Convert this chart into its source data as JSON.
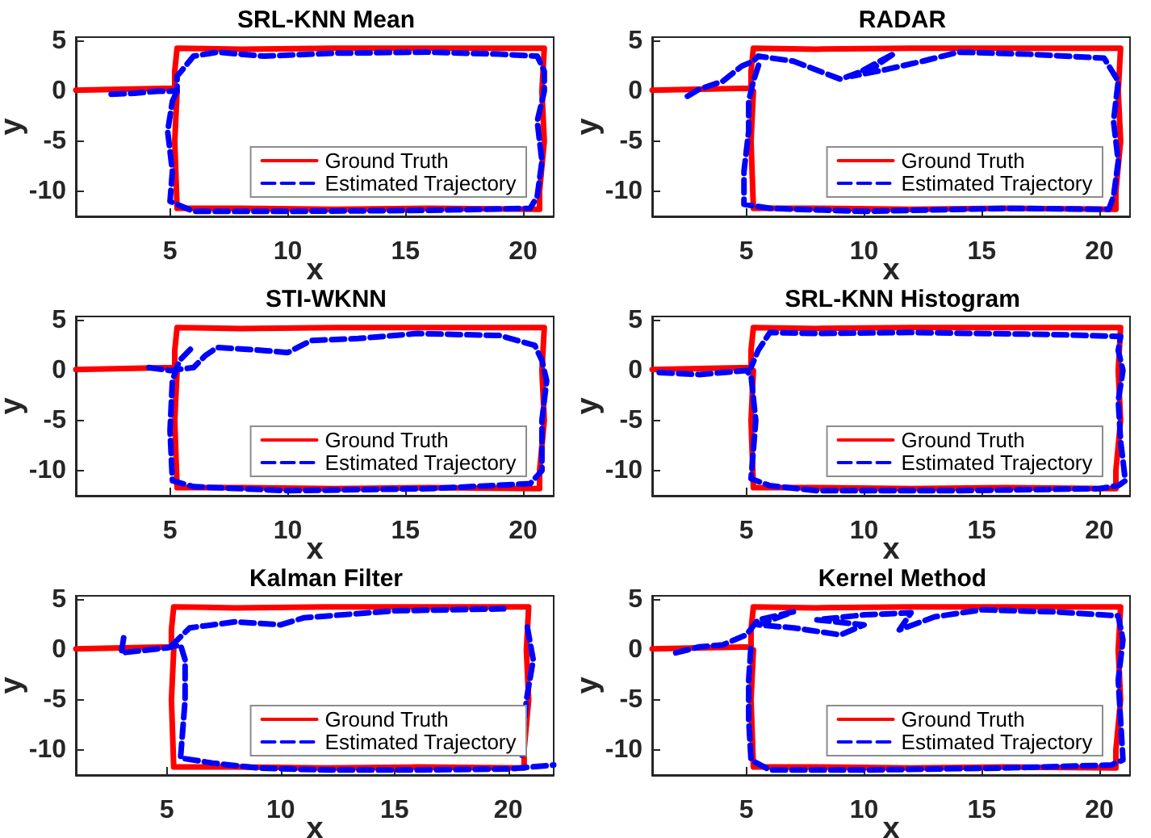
{
  "chart_data": [
    {
      "type": "line",
      "title": "SRL-KNN Mean",
      "xlabel": "x",
      "ylabel": "y",
      "xlim": [
        1,
        21.3
      ],
      "ylim": [
        -12.5,
        5.4
      ],
      "xticks": [
        5,
        10,
        15,
        20
      ],
      "yticks": [
        -10,
        -5,
        0,
        5
      ],
      "legend": "bottom right",
      "marker": "none",
      "grid": false,
      "series": [
        {
          "name": "Ground Truth",
          "color": "#ff0000",
          "line_style": "solid",
          "x": [
            1,
            3,
            5.2,
            5.2,
            5.3,
            8,
            12,
            16,
            20.9,
            20.8,
            20.9,
            20.7,
            20.7,
            16,
            12,
            8,
            5.3,
            5.2,
            5.3
          ],
          "values": [
            0.1,
            0.2,
            0.3,
            2,
            4.3,
            4.2,
            4.3,
            4.3,
            4.3,
            0,
            -5,
            -10,
            -11.8,
            -11.7,
            -11.8,
            -11.7,
            -11.7,
            -5,
            0
          ]
        },
        {
          "name": "Estimated Trajectory",
          "color": "#0000ff",
          "line_style": "dashed",
          "x": [
            2.5,
            3.5,
            4.5,
            5.3,
            5.3,
            6,
            7,
            9,
            12,
            16,
            19,
            20.6,
            20.9,
            20.9,
            20.6,
            20.8,
            20.6,
            20.3,
            16,
            10,
            6,
            5,
            5.1,
            4.9,
            5.1,
            5.3
          ],
          "values": [
            -0.3,
            -0.2,
            0,
            0,
            1.5,
            3.5,
            3.9,
            3.5,
            3.8,
            3.9,
            3.7,
            3.5,
            2,
            0,
            -3,
            -7,
            -10.5,
            -11.7,
            -11.9,
            -12,
            -12,
            -11,
            -8,
            -4,
            -1,
            0
          ]
        }
      ]
    },
    {
      "type": "line",
      "title": "RADAR",
      "xlabel": "x",
      "ylabel": "y",
      "xlim": [
        1,
        21.3
      ],
      "ylim": [
        -12.5,
        5.4
      ],
      "xticks": [
        5,
        10,
        15,
        20
      ],
      "yticks": [
        -10,
        -5,
        0,
        5
      ],
      "legend": "bottom right",
      "marker": "none",
      "grid": false,
      "series": [
        {
          "name": "Ground Truth",
          "color": "#ff0000",
          "line_style": "solid",
          "x": [
            1,
            3,
            5.2,
            5.2,
            5.3,
            8,
            12,
            16,
            20.9,
            20.8,
            20.9,
            20.7,
            20.7,
            16,
            12,
            8,
            5.3,
            5.2,
            5.3
          ],
          "values": [
            0.1,
            0.2,
            0.3,
            2,
            4.3,
            4.2,
            4.3,
            4.3,
            4.3,
            0,
            -5,
            -10,
            -11.8,
            -11.7,
            -11.8,
            -11.7,
            -11.7,
            -5,
            0
          ]
        },
        {
          "name": "Estimated Trajectory",
          "color": "#0000ff",
          "line_style": "dashed",
          "x": [
            2.5,
            3,
            4,
            4.8,
            5.3,
            5.5,
            7,
            9,
            10.5,
            11.3,
            9.5,
            11,
            12.5,
            14,
            17,
            20.2,
            20.8,
            20.6,
            20.8,
            20.6,
            20.4,
            16,
            10,
            6,
            4.9,
            4.9,
            5.1,
            5.1,
            5.3,
            5.6
          ],
          "values": [
            -0.5,
            0.2,
            1,
            2.5,
            3,
            3.5,
            3,
            1.2,
            2.5,
            3.8,
            1.5,
            2.2,
            3,
            3.9,
            3.7,
            3.3,
            1,
            -3,
            -7,
            -10.5,
            -11.8,
            -11.7,
            -12,
            -11.7,
            -11.3,
            -8,
            -4,
            -1,
            1,
            3.2
          ]
        }
      ]
    },
    {
      "type": "line",
      "title": "STI-WKNN",
      "xlabel": "x",
      "ylabel": "y",
      "xlim": [
        1,
        21.3
      ],
      "ylim": [
        -12.5,
        5.4
      ],
      "xticks": [
        5,
        10,
        15,
        20
      ],
      "yticks": [
        -10,
        -5,
        0,
        5
      ],
      "legend": "bottom right",
      "marker": "none",
      "grid": false,
      "series": [
        {
          "name": "Ground Truth",
          "color": "#ff0000",
          "line_style": "solid",
          "x": [
            1,
            3,
            5.2,
            5.2,
            5.3,
            8,
            12,
            16,
            20.9,
            20.8,
            20.9,
            20.7,
            20.7,
            16,
            12,
            8,
            5.3,
            5.2,
            5.3
          ],
          "values": [
            0.1,
            0.2,
            0.3,
            2,
            4.3,
            4.2,
            4.3,
            4.3,
            4.3,
            0,
            -5,
            -10,
            -11.8,
            -11.7,
            -11.8,
            -11.7,
            -11.7,
            -5,
            0
          ]
        },
        {
          "name": "Estimated Trajectory",
          "color": "#0000ff",
          "line_style": "dashed",
          "x": [
            4.1,
            5,
            6,
            6.5,
            7,
            9,
            10,
            11,
            13,
            15.5,
            19,
            20.5,
            20.8,
            21,
            20.8,
            20.8,
            20.3,
            16,
            10,
            6,
            5.1,
            5,
            5.1,
            5.4,
            5.9
          ],
          "values": [
            0.3,
            0,
            0.3,
            1.5,
            2.3,
            2,
            1.8,
            3,
            3.2,
            3.7,
            3.5,
            2.5,
            1,
            -1,
            -5,
            -10,
            -11.3,
            -11.8,
            -12,
            -11.6,
            -11,
            -6,
            -1,
            1,
            2.2
          ]
        }
      ]
    },
    {
      "type": "line",
      "title": "SRL-KNN Histogram",
      "xlabel": "x",
      "ylabel": "y",
      "xlim": [
        1,
        21.3
      ],
      "ylim": [
        -12.5,
        5.4
      ],
      "xticks": [
        5,
        10,
        15,
        20
      ],
      "yticks": [
        -10,
        -5,
        0,
        5
      ],
      "legend": "bottom right",
      "marker": "none",
      "grid": false,
      "series": [
        {
          "name": "Ground Truth",
          "color": "#ff0000",
          "line_style": "solid",
          "x": [
            1,
            3,
            5.2,
            5.2,
            5.3,
            8,
            12,
            16,
            20.9,
            20.8,
            20.9,
            20.7,
            20.7,
            16,
            12,
            8,
            5.3,
            5.2,
            5.3
          ],
          "values": [
            0.1,
            0.2,
            0.3,
            2,
            4.3,
            4.2,
            4.3,
            4.3,
            4.3,
            0,
            -5,
            -10,
            -11.8,
            -11.7,
            -11.8,
            -11.7,
            -11.7,
            -5,
            0
          ]
        },
        {
          "name": "Estimated Trajectory",
          "color": "#0000ff",
          "line_style": "dashed",
          "x": [
            1.3,
            3,
            5,
            5.2,
            5.4,
            5.2,
            6,
            8,
            14,
            20,
            20.8,
            21.1,
            20.9,
            20.8,
            21,
            20.8,
            20.9,
            18,
            12,
            8,
            6,
            5.5,
            5.2
          ],
          "values": [
            -0.2,
            -0.4,
            0,
            -0.5,
            -5,
            -10.8,
            -11.5,
            -12,
            -12,
            -11.8,
            -11.5,
            -11,
            -7,
            -3,
            0,
            2,
            3.4,
            3.6,
            3.8,
            3.7,
            3.8,
            2,
            0.3
          ]
        }
      ]
    },
    {
      "type": "line",
      "title": "Kalman Filter",
      "xlabel": "x",
      "ylabel": "y",
      "xlim": [
        1,
        22
      ],
      "ylim": [
        -12.5,
        5.4
      ],
      "xticks": [
        5,
        10,
        15,
        20
      ],
      "yticks": [
        -10,
        -5,
        0,
        5
      ],
      "legend": "bottom right",
      "marker": "none",
      "grid": false,
      "series": [
        {
          "name": "Ground Truth",
          "color": "#ff0000",
          "line_style": "solid",
          "x": [
            1,
            3,
            5.2,
            5.2,
            5.3,
            8,
            12,
            16,
            20.9,
            20.8,
            20.9,
            20.7,
            20.7,
            16,
            12,
            8,
            5.3,
            5.2,
            5.3
          ],
          "values": [
            0.1,
            0.2,
            0.3,
            2,
            4.3,
            4.2,
            4.3,
            4.3,
            4.3,
            0,
            -5,
            -10,
            -11.8,
            -11.7,
            -11.8,
            -11.7,
            -11.7,
            -5,
            0
          ]
        },
        {
          "name": "Estimated Trajectory",
          "color": "#0000ff",
          "line_style": "dashed",
          "x": [
            3.1,
            3,
            5,
            5.6,
            5.8,
            5.8,
            5.6,
            7,
            9,
            12,
            16,
            20,
            22,
            null,
            5.2,
            6,
            8,
            10,
            11,
            15,
            19.8,
            null,
            20.6,
            20.8,
            21.1,
            20.8
          ],
          "values": [
            1.2,
            -0.3,
            0.2,
            0.5,
            -1,
            -5,
            -10.8,
            -11.3,
            -11.8,
            -12,
            -12,
            -11.9,
            -11.5,
            null,
            0.4,
            2.2,
            2.8,
            2.5,
            3.2,
            3.9,
            4.1,
            null,
            -10.5,
            -5,
            -1,
            2.8
          ]
        }
      ]
    },
    {
      "type": "line",
      "title": "Kernel Method",
      "xlabel": "x",
      "ylabel": "y",
      "xlim": [
        1,
        21.3
      ],
      "ylim": [
        -12.5,
        5.4
      ],
      "xticks": [
        5,
        10,
        15,
        20
      ],
      "yticks": [
        -10,
        -5,
        0,
        5
      ],
      "legend": "bottom right",
      "marker": "none",
      "grid": false,
      "series": [
        {
          "name": "Ground Truth",
          "color": "#ff0000",
          "line_style": "solid",
          "x": [
            1,
            3,
            5.2,
            5.2,
            5.3,
            8,
            12,
            16,
            20.9,
            20.8,
            20.9,
            20.7,
            20.7,
            16,
            12,
            8,
            5.3,
            5.2,
            5.3
          ],
          "values": [
            0.1,
            0.2,
            0.3,
            2,
            4.3,
            4.2,
            4.3,
            4.3,
            4.3,
            0,
            -5,
            -10,
            -11.8,
            -11.7,
            -11.8,
            -11.7,
            -11.7,
            -5,
            0
          ]
        },
        {
          "name": "Estimated Trajectory",
          "color": "#0000ff",
          "line_style": "dashed",
          "x": [
            2,
            3,
            4,
            5,
            5.5,
            7,
            5.5,
            7,
            9,
            10,
            8,
            10,
            12,
            11.5,
            13,
            15,
            18,
            20.8,
            21,
            20.8,
            20.9,
            21,
            20.5,
            16,
            10,
            6,
            5.2,
            5.1,
            5.1,
            5.2
          ],
          "values": [
            -0.3,
            0.3,
            0.5,
            1.5,
            3,
            3.8,
            2.5,
            2.2,
            1.5,
            2.5,
            3,
            3.5,
            3.7,
            2,
            3.3,
            4,
            3.8,
            3.4,
            1,
            -3,
            -7,
            -11,
            -11.5,
            -11.8,
            -12,
            -12,
            -11,
            -7,
            -3,
            0.5
          ]
        }
      ]
    }
  ]
}
